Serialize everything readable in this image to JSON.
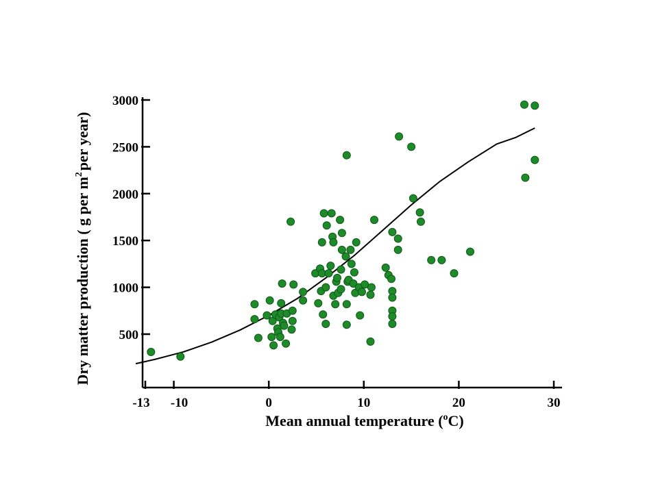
{
  "chart_data": {
    "type": "scatter",
    "title": "",
    "xlabel_main": "Mean annual temperature (",
    "xlabel_sup": "o",
    "xlabel_end": "C)",
    "ylabel_main": "Dry matter production ( g per m",
    "ylabel_sup": "2",
    "ylabel_end": "per year)",
    "xlim": [
      -14,
      31
    ],
    "ylim": [
      0,
      3000
    ],
    "x_ticks": [
      -13,
      -10,
      0,
      10,
      20,
      30
    ],
    "x_tick_labels": [
      "-13",
      "-10",
      "0",
      "10",
      "20",
      "30"
    ],
    "y_ticks": [
      500,
      1000,
      1500,
      2000,
      2500,
      3000
    ],
    "y_tick_labels": [
      "500",
      "1000",
      "1500",
      "2000",
      "2500",
      "3000"
    ],
    "grid": false,
    "legend": "none",
    "colors": {
      "points": "#1f8a2a",
      "point_edge": "#0d5a17",
      "curve": "#000000",
      "axis": "#000000"
    },
    "points": [
      [
        -12.4,
        310
      ],
      [
        -9.3,
        260
      ],
      [
        -1.5,
        820
      ],
      [
        -1.5,
        660
      ],
      [
        -1.1,
        460
      ],
      [
        -0.2,
        700
      ],
      [
        0.1,
        860
      ],
      [
        0.4,
        640
      ],
      [
        0.3,
        470
      ],
      [
        0.5,
        380
      ],
      [
        0.9,
        560
      ],
      [
        0.7,
        710
      ],
      [
        1.1,
        680
      ],
      [
        1.3,
        720
      ],
      [
        1.0,
        520
      ],
      [
        1.2,
        470
      ],
      [
        1.3,
        830
      ],
      [
        1.5,
        620
      ],
      [
        1.6,
        590
      ],
      [
        1.8,
        400
      ],
      [
        1.4,
        1040
      ],
      [
        1.9,
        720
      ],
      [
        2.4,
        550
      ],
      [
        2.5,
        640
      ],
      [
        2.5,
        750
      ],
      [
        2.3,
        1700
      ],
      [
        2.6,
        1030
      ],
      [
        3.6,
        860
      ],
      [
        3.6,
        950
      ],
      [
        4.9,
        1150
      ],
      [
        5.2,
        830
      ],
      [
        5.4,
        1200
      ],
      [
        5.5,
        960
      ],
      [
        5.7,
        710
      ],
      [
        5.6,
        1150
      ],
      [
        5.6,
        1480
      ],
      [
        5.8,
        1790
      ],
      [
        6.0,
        1000
      ],
      [
        6.0,
        610
      ],
      [
        6.3,
        1150
      ],
      [
        6.1,
        1660
      ],
      [
        6.5,
        1230
      ],
      [
        6.6,
        1790
      ],
      [
        6.7,
        1540
      ],
      [
        6.8,
        1480
      ],
      [
        6.8,
        910
      ],
      [
        7.0,
        820
      ],
      [
        7.1,
        1060
      ],
      [
        7.3,
        940
      ],
      [
        7.2,
        1100
      ],
      [
        7.5,
        1720
      ],
      [
        7.7,
        1580
      ],
      [
        7.7,
        1400
      ],
      [
        7.6,
        1190
      ],
      [
        7.6,
        980
      ],
      [
        8.1,
        1330
      ],
      [
        8.2,
        820
      ],
      [
        8.3,
        1060
      ],
      [
        8.4,
        1080
      ],
      [
        8.2,
        600
      ],
      [
        8.2,
        2410
      ],
      [
        8.6,
        1400
      ],
      [
        8.7,
        1250
      ],
      [
        8.9,
        1040
      ],
      [
        9.0,
        1160
      ],
      [
        9.1,
        940
      ],
      [
        9.2,
        1480
      ],
      [
        9.5,
        1000
      ],
      [
        9.6,
        700
      ],
      [
        9.8,
        950
      ],
      [
        10.1,
        1030
      ],
      [
        10.8,
        1000
      ],
      [
        10.7,
        920
      ],
      [
        10.7,
        420
      ],
      [
        11.1,
        1720
      ],
      [
        12.3,
        1210
      ],
      [
        12.6,
        1130
      ],
      [
        12.9,
        1090
      ],
      [
        13.0,
        1590
      ],
      [
        13.0,
        960
      ],
      [
        13.0,
        890
      ],
      [
        13.0,
        750
      ],
      [
        13.0,
        690
      ],
      [
        13.0,
        610
      ],
      [
        13.6,
        1520
      ],
      [
        13.6,
        1400
      ],
      [
        13.7,
        2610
      ],
      [
        15.0,
        2500
      ],
      [
        15.2,
        1950
      ],
      [
        15.9,
        1800
      ],
      [
        16.0,
        1700
      ],
      [
        17.1,
        1290
      ],
      [
        18.2,
        1290
      ],
      [
        19.5,
        1150
      ],
      [
        21.2,
        1380
      ],
      [
        26.9,
        2950
      ],
      [
        27.0,
        2170
      ],
      [
        28.0,
        2940
      ],
      [
        28.0,
        2360
      ]
    ],
    "curve": [
      [
        -14,
        185
      ],
      [
        -12,
        230
      ],
      [
        -9,
        310
      ],
      [
        -6,
        415
      ],
      [
        -3,
        545
      ],
      [
        0,
        700
      ],
      [
        3,
        880
      ],
      [
        6,
        1100
      ],
      [
        9,
        1340
      ],
      [
        12,
        1610
      ],
      [
        15,
        1880
      ],
      [
        18,
        2130
      ],
      [
        21,
        2340
      ],
      [
        24,
        2530
      ],
      [
        26,
        2600
      ],
      [
        28,
        2700
      ]
    ]
  }
}
